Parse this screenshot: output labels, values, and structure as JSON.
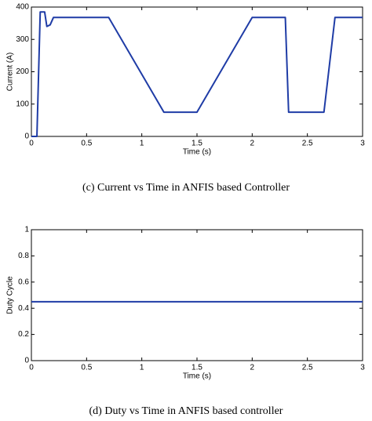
{
  "chart_data": [
    {
      "type": "line",
      "caption": "(c) Current vs Time in ANFIS based Controller",
      "x_label": "Time (s)",
      "y_label": "Current (A)",
      "color": "#1f3ca6",
      "x": [
        0,
        0.05,
        0.08,
        0.12,
        0.14,
        0.17,
        0.2,
        0.7,
        1.2,
        1.5,
        2.0,
        2.3,
        2.33,
        2.65,
        2.75,
        3
      ],
      "values": [
        0,
        0,
        385,
        385,
        340,
        345,
        368,
        368,
        75,
        75,
        368,
        368,
        75,
        75,
        368,
        368
      ],
      "xlim": [
        0,
        3
      ],
      "xticks": [
        0,
        0.5,
        1,
        1.5,
        2,
        2.5,
        3
      ],
      "ylim": [
        0,
        400
      ],
      "yticks": [
        0,
        100,
        200,
        300,
        400
      ]
    },
    {
      "type": "line",
      "caption": "(d) Duty vs Time in ANFIS based controller",
      "x_label": "Time (s)",
      "y_label": "Duty Cycle",
      "color": "#1f3ca6",
      "x": [
        0,
        3
      ],
      "values": [
        0.45,
        0.45
      ],
      "xlim": [
        0,
        3
      ],
      "xticks": [
        0,
        0.5,
        1,
        1.5,
        2,
        2.5,
        3
      ],
      "ylim": [
        0,
        1
      ],
      "yticks": [
        0,
        0.2,
        0.4,
        0.6,
        0.8,
        1
      ]
    }
  ]
}
